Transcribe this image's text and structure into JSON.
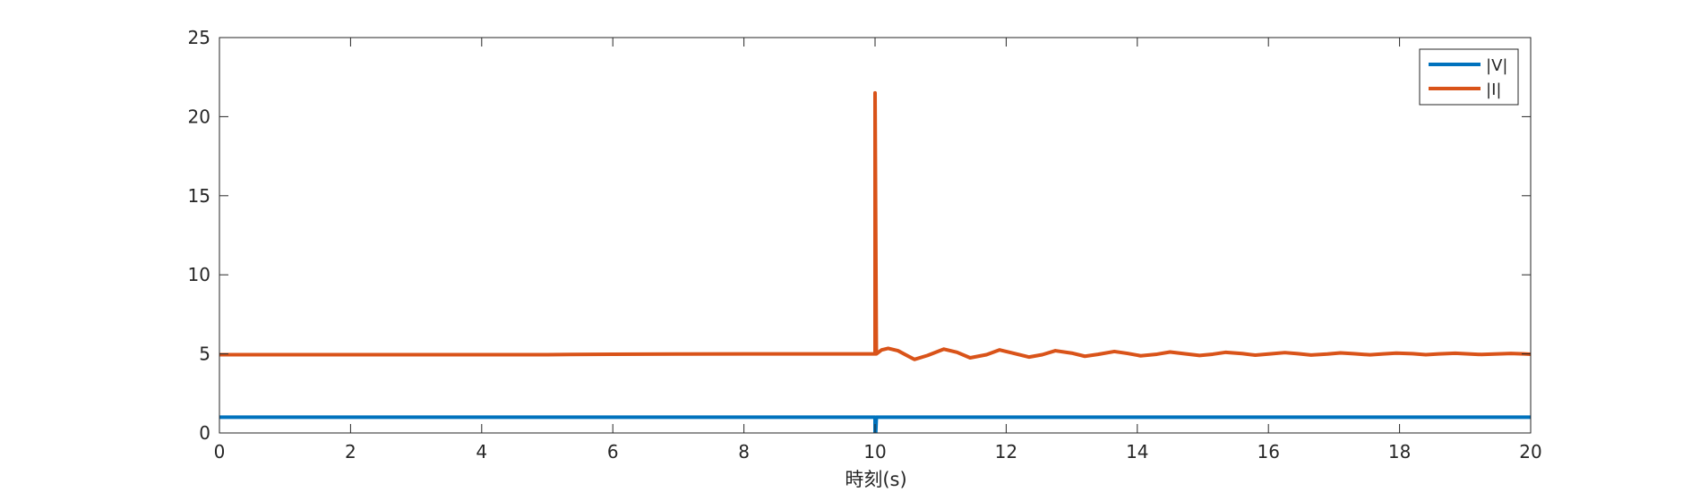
{
  "chart_data": {
    "type": "line",
    "title": "",
    "xlabel": "時刻(s)",
    "ylabel": "",
    "xlim": [
      0,
      20
    ],
    "ylim": [
      0,
      25
    ],
    "xticks": [
      0,
      2,
      4,
      6,
      8,
      10,
      12,
      14,
      16,
      18,
      20
    ],
    "yticks": [
      0,
      5,
      10,
      15,
      20,
      25
    ],
    "grid": false,
    "legend_position": "top-right",
    "series": [
      {
        "name": "|V|",
        "color": "#0072BD",
        "x": [
          0,
          9.99,
          10.0,
          10.0,
          10.01,
          10.02,
          20
        ],
        "y": [
          1.0,
          1.0,
          1.0,
          0.0,
          0.0,
          1.0,
          1.0
        ]
      },
      {
        "name": "|I|",
        "color": "#D95319",
        "x": [
          0,
          5,
          6,
          7,
          8,
          9,
          9.99,
          10.0,
          10.0,
          10.02,
          10.1,
          10.2,
          10.35,
          10.6,
          10.8,
          11.05,
          11.25,
          11.45,
          11.7,
          11.9,
          12.1,
          12.35,
          12.55,
          12.75,
          13.0,
          13.2,
          13.4,
          13.65,
          13.85,
          14.05,
          14.3,
          14.5,
          14.7,
          14.95,
          15.15,
          15.35,
          15.6,
          15.8,
          16.0,
          16.25,
          16.45,
          16.65,
          16.9,
          17.1,
          17.3,
          17.55,
          17.75,
          17.95,
          18.2,
          18.4,
          18.6,
          18.85,
          19.05,
          19.25,
          19.5,
          19.7,
          19.9,
          20
        ],
        "y": [
          4.95,
          4.95,
          4.98,
          4.99,
          5.0,
          5.0,
          5.0,
          5.0,
          21.5,
          5.0,
          5.25,
          5.35,
          5.2,
          4.65,
          4.9,
          5.3,
          5.1,
          4.75,
          4.95,
          5.25,
          5.05,
          4.8,
          4.95,
          5.2,
          5.05,
          4.85,
          4.97,
          5.15,
          5.03,
          4.88,
          4.98,
          5.12,
          5.02,
          4.9,
          4.98,
          5.1,
          5.02,
          4.92,
          4.99,
          5.08,
          5.01,
          4.93,
          4.99,
          5.06,
          5.01,
          4.94,
          5.0,
          5.05,
          5.01,
          4.95,
          5.0,
          5.04,
          5.0,
          4.96,
          5.0,
          5.03,
          5.0,
          4.98
        ]
      }
    ]
  }
}
